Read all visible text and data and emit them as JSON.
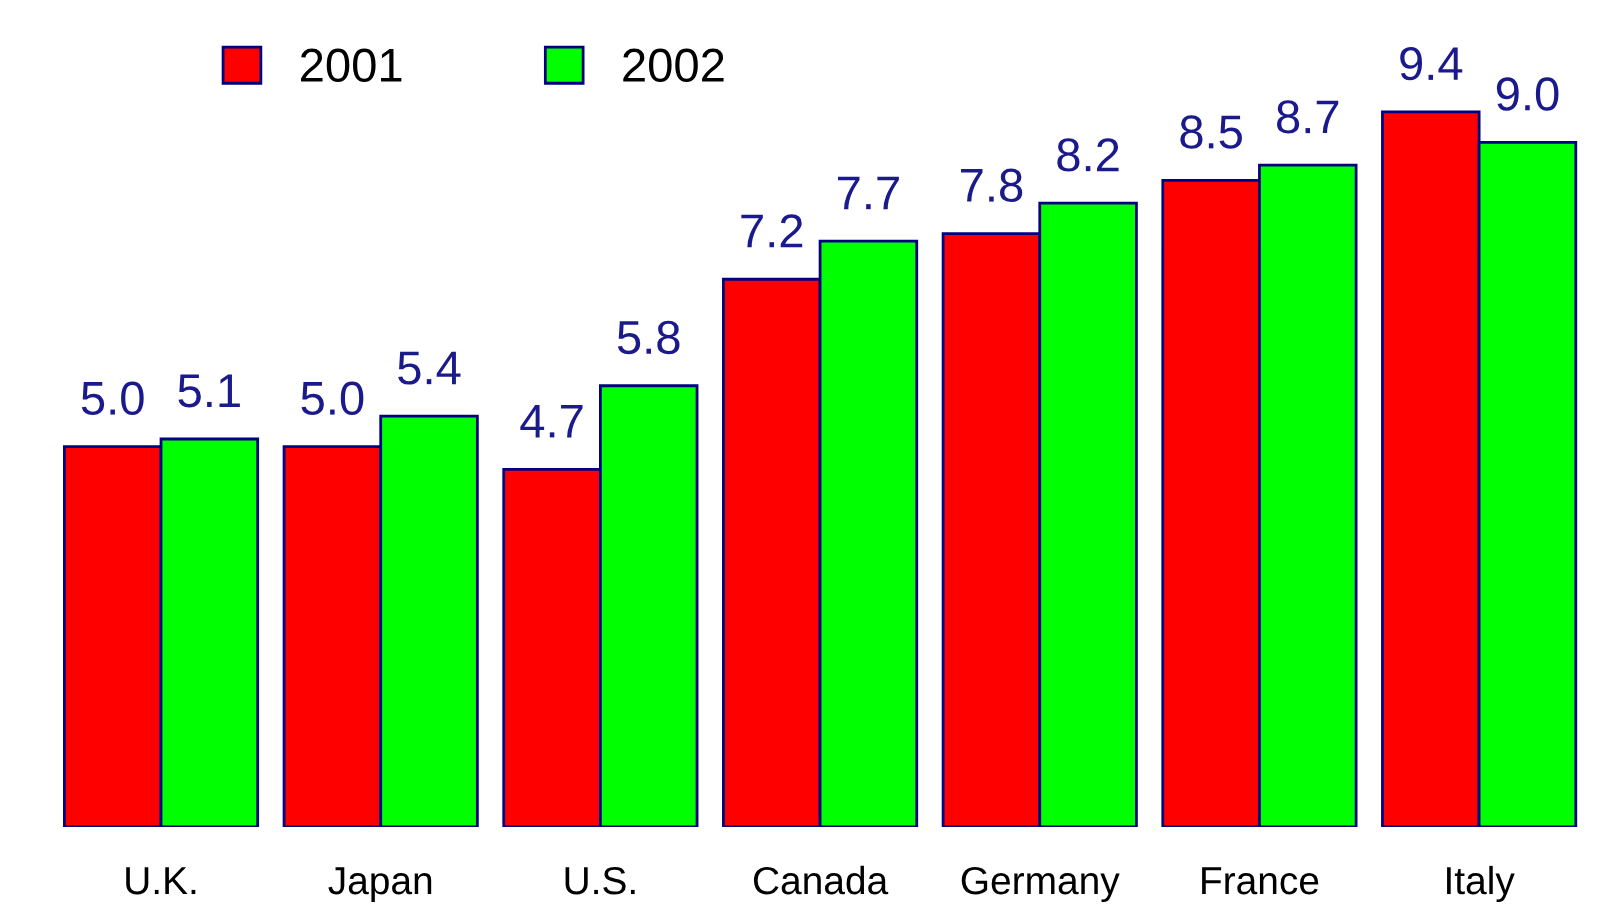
{
  "chart_data": {
    "type": "bar",
    "categories": [
      "U.K.",
      "Japan",
      "U.S.",
      "Canada",
      "Germany",
      "France",
      "Italy"
    ],
    "series": [
      {
        "name": "2001",
        "color": "#ff0000",
        "values": [
          5.0,
          5.0,
          4.7,
          7.2,
          7.8,
          8.5,
          9.4
        ],
        "value_labels": [
          "5.0",
          "5.0",
          "4.7",
          "7.2",
          "7.8",
          "8.5",
          "9.4"
        ]
      },
      {
        "name": "2002",
        "color": "#00ff00",
        "values": [
          5.1,
          5.4,
          5.8,
          7.7,
          8.2,
          8.7,
          9.0
        ],
        "value_labels": [
          "5.1",
          "5.4",
          "5.8",
          "7.7",
          "8.2",
          "8.7",
          "9.0"
        ]
      }
    ],
    "legend": "top left",
    "grid": false
  }
}
